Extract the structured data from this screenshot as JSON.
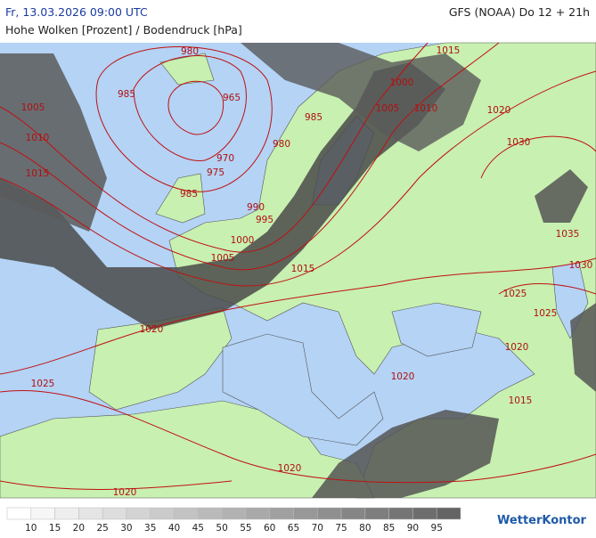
{
  "header": {
    "datetime": "Fr, 13.03.2026 09:00 UTC",
    "model": "GFS (NOAA) Do 12 + 21h",
    "subtitle": "Hohe Wolken [Prozent] / Bodendruck [hPa]"
  },
  "isobar_labels": [
    "980",
    "985",
    "965",
    "1005",
    "1010",
    "970",
    "975",
    "1015",
    "985",
    "980",
    "985",
    "990",
    "995",
    "1000",
    "1005",
    "1015",
    "1000",
    "1005",
    "1010",
    "1015",
    "1020",
    "1030",
    "1035",
    "1030",
    "1025",
    "1025",
    "1020",
    "1020",
    "1025",
    "1020",
    "1015",
    "1020",
    "1020"
  ],
  "legend": {
    "ticks": [
      10,
      15,
      20,
      25,
      30,
      35,
      40,
      45,
      50,
      55,
      60,
      65,
      70,
      75,
      80,
      85,
      90,
      95
    ]
  },
  "logo": "WetterKontor"
}
